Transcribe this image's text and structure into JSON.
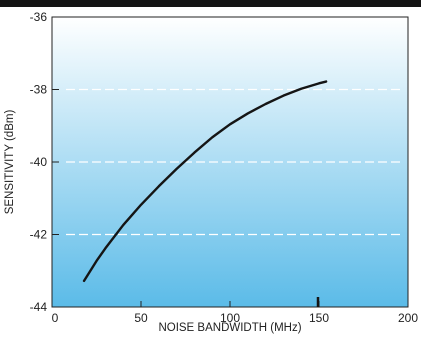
{
  "colors": {
    "top_bar": "#141414",
    "plot_gradient_top": "#ffffff",
    "plot_gradient_bottom": "#5bbbe8",
    "curve": "#151515",
    "grid": "#ffffff",
    "axis": "#222222"
  },
  "chart_data": {
    "type": "line",
    "title": "",
    "xlabel": "NOISE BANDWIDTH (MHz)",
    "ylabel": "SENSITIVITY (dBm)",
    "xlim": [
      0,
      200
    ],
    "ylim": [
      -44,
      -36
    ],
    "x_ticks": [
      0,
      50,
      100,
      150,
      200
    ],
    "x_tick_labels": [
      "0",
      "50",
      "100",
      "150",
      "200"
    ],
    "y_ticks": [
      -36,
      -38,
      -40,
      -42,
      -44
    ],
    "y_tick_labels": [
      "-36",
      "-38",
      "-40",
      "-42",
      "-44"
    ],
    "grid": {
      "style": "dashed",
      "y_values": [
        -38,
        -40,
        -42
      ]
    },
    "marker_x": 150,
    "series": [
      {
        "x": [
          18,
          25,
          30,
          40,
          50,
          60,
          70,
          80,
          90,
          100,
          110,
          120,
          130,
          140,
          150,
          154
        ],
        "y": [
          -43.28,
          -42.73,
          -42.38,
          -41.74,
          -41.18,
          -40.67,
          -40.19,
          -39.74,
          -39.32,
          -38.96,
          -38.66,
          -38.4,
          -38.17,
          -37.98,
          -37.83,
          -37.78
        ]
      }
    ]
  }
}
